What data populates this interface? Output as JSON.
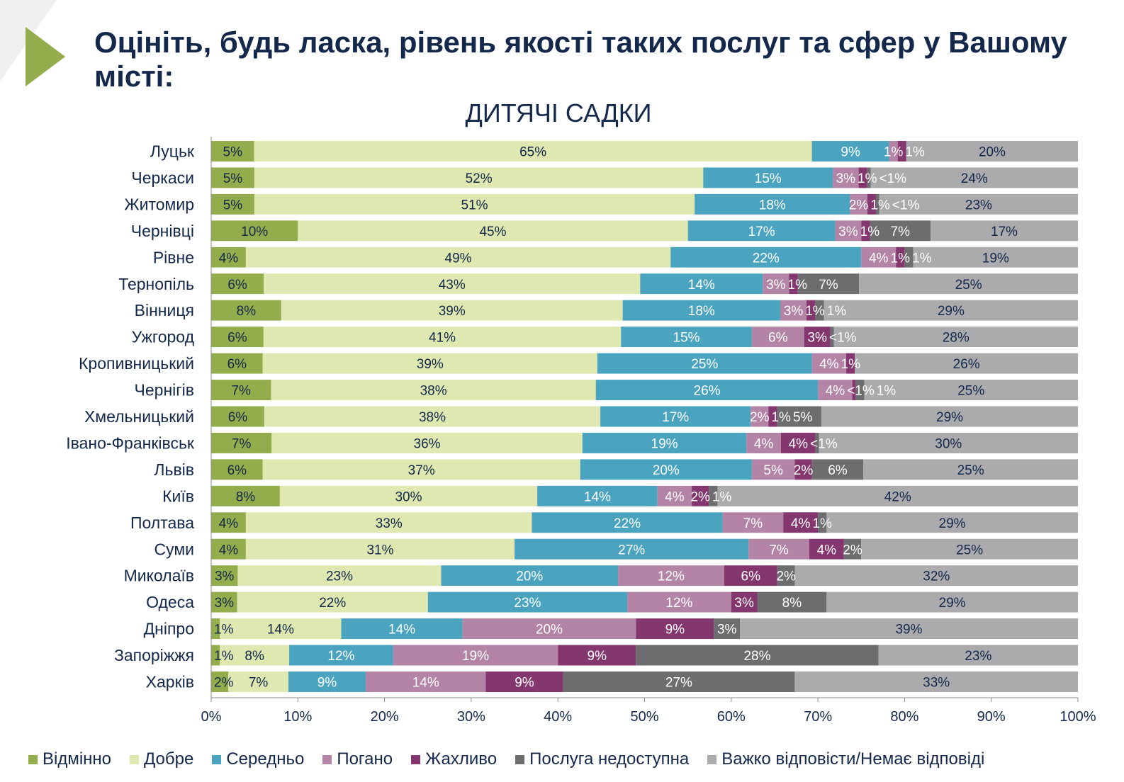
{
  "header": {
    "title": "Оцініть, будь ласка, рівень якості таких послуг та сфер у Вашому місті:"
  },
  "chart_data": {
    "type": "bar",
    "orientation": "horizontal",
    "stacked": true,
    "title": "ДИТЯЧІ САДКИ",
    "xlim": [
      0,
      100
    ],
    "x_ticks": [
      "0%",
      "10%",
      "20%",
      "30%",
      "40%",
      "50%",
      "60%",
      "70%",
      "80%",
      "90%",
      "100%"
    ],
    "legend_position": "bottom",
    "categories": [
      "Луцьк",
      "Черкаси",
      "Житомир",
      "Чернівці",
      "Рівне",
      "Тернопіль",
      "Вінниця",
      "Ужгород",
      "Кропивницький",
      "Чернігів",
      "Хмельницький",
      "Івано-Франківськ",
      "Львів",
      "Київ",
      "Полтава",
      "Суми",
      "Миколаїв",
      "Одеса",
      "Дніпро",
      "Запоріжжя",
      "Харків"
    ],
    "series": [
      {
        "name": "Відмінно",
        "color": "#93ad4c",
        "values": [
          5,
          5,
          5,
          10,
          4,
          6,
          8,
          6,
          6,
          7,
          6,
          7,
          6,
          8,
          4,
          4,
          3,
          3,
          1,
          1,
          2
        ]
      },
      {
        "name": "Добре",
        "color": "#dfe8b0",
        "values": [
          65,
          52,
          51,
          45,
          49,
          43,
          39,
          41,
          39,
          38,
          38,
          36,
          37,
          30,
          33,
          31,
          23,
          22,
          14,
          8,
          7
        ]
      },
      {
        "name": "Середньо",
        "color": "#4aa4bf",
        "values": [
          9,
          15,
          18,
          17,
          22,
          14,
          18,
          15,
          25,
          26,
          17,
          19,
          20,
          14,
          22,
          27,
          20,
          23,
          14,
          12,
          9
        ]
      },
      {
        "name": "Погано",
        "color": "#b384a6",
        "values": [
          1,
          3,
          2,
          3,
          4,
          3,
          3,
          6,
          4,
          4,
          2,
          4,
          5,
          4,
          7,
          7,
          12,
          12,
          20,
          19,
          14
        ]
      },
      {
        "name": "Жахливо",
        "color": "#84366e",
        "values": [
          1,
          1,
          1,
          1,
          1,
          1,
          1,
          3,
          1,
          "<1",
          1,
          4,
          2,
          2,
          4,
          4,
          6,
          3,
          9,
          9,
          9
        ]
      },
      {
        "name": "Послуга недоступна",
        "color": "#6d6d6f",
        "values": [
          null,
          "<1",
          "<1",
          7,
          1,
          7,
          1,
          "<1",
          null,
          1,
          5,
          "<1",
          6,
          1,
          1,
          2,
          2,
          8,
          3,
          28,
          27
        ]
      },
      {
        "name": "Важко відповісти/Немає відповіді",
        "color": "#abaaad",
        "values": [
          20,
          24,
          23,
          17,
          19,
          25,
          29,
          28,
          26,
          25,
          29,
          30,
          25,
          42,
          29,
          25,
          32,
          29,
          39,
          23,
          33
        ]
      }
    ]
  }
}
